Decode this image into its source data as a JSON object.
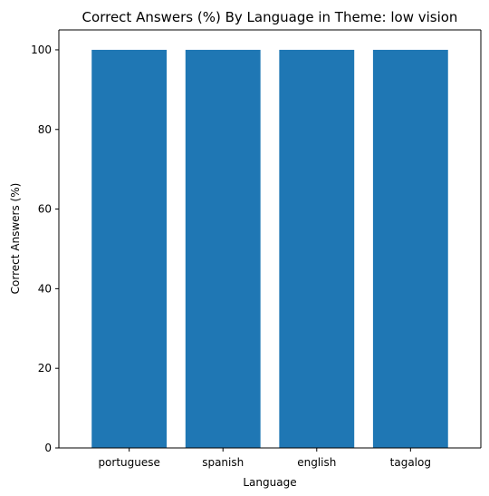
{
  "chart_data": {
    "type": "bar",
    "title": "Correct Answers (%) By Language in Theme: low vision",
    "xlabel": "Language",
    "ylabel": "Correct Answers (%)",
    "categories": [
      "portuguese",
      "spanish",
      "english",
      "tagalog"
    ],
    "values": [
      100,
      100,
      100,
      100
    ],
    "ylim": [
      0,
      105
    ],
    "yticks": [
      0,
      20,
      40,
      60,
      80,
      100
    ],
    "grid": false,
    "bar_color": "#1f77b4"
  }
}
